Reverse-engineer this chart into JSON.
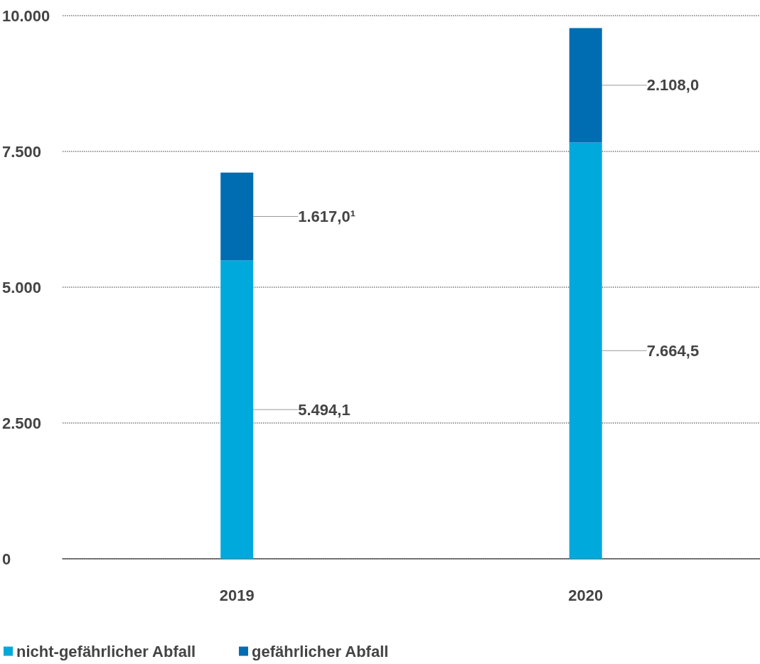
{
  "chart_data": {
    "type": "bar",
    "stacked": true,
    "categories": [
      "2019",
      "2020"
    ],
    "series": [
      {
        "name": "nicht-gefährlicher Abfall",
        "color": "#00a9dc",
        "values": [
          5494.1,
          7664.5
        ],
        "value_labels": [
          "5.494,1",
          "7.664,5"
        ]
      },
      {
        "name": "gefährlicher Abfall",
        "color": "#006db3",
        "values": [
          1617.0,
          2108.0
        ],
        "value_labels": [
          "1.617,0¹",
          "2.108,0"
        ]
      }
    ],
    "ylim": [
      0,
      10000
    ],
    "yticks": [
      0,
      {
        "value": 2500,
        "label": "2.500"
      },
      {
        "value": 5000,
        "label": "5.000"
      },
      {
        "value": 7500,
        "label": "7.500"
      },
      {
        "value": 10000,
        "label": "10.000"
      }
    ],
    "grid": "y",
    "legend": "bottom left"
  }
}
